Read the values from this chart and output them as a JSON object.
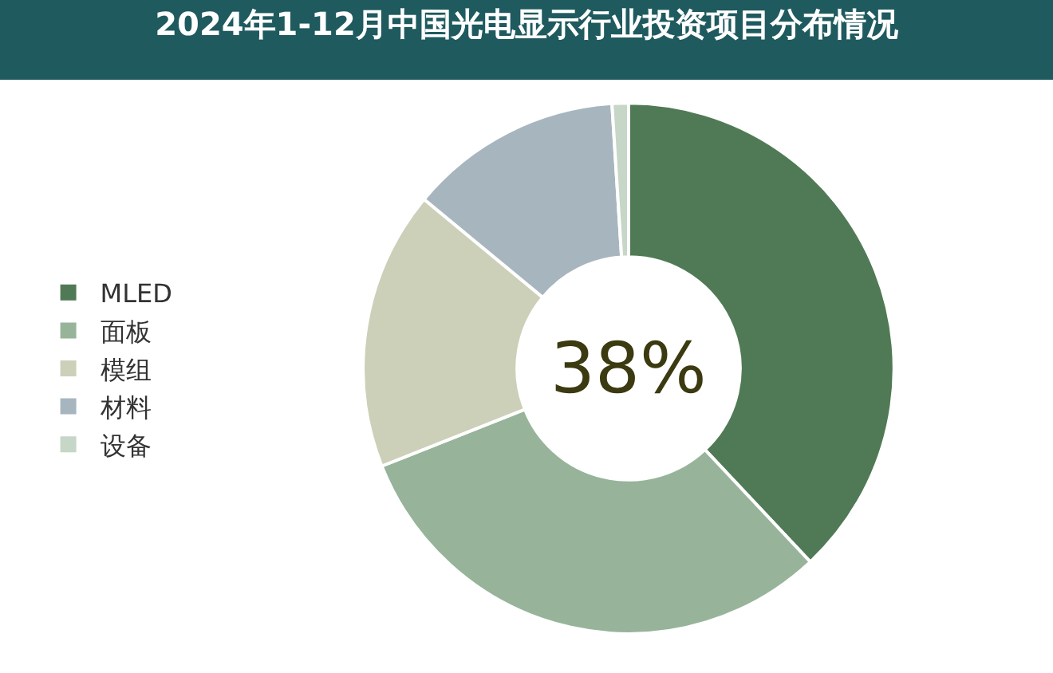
{
  "chart_data": {
    "type": "donut",
    "title": "2024年1-12月中国光电显示行业投资项目分布情况",
    "categories": [
      "MLED",
      "面板",
      "模组",
      "材料",
      "设备"
    ],
    "values": [
      38,
      31,
      17,
      13,
      1
    ],
    "colors": [
      "#507a55",
      "#97b49a",
      "#ccd0b9",
      "#a7b5be",
      "#c6d6c7"
    ],
    "annotations": [
      "38%"
    ],
    "legend": "left"
  }
}
